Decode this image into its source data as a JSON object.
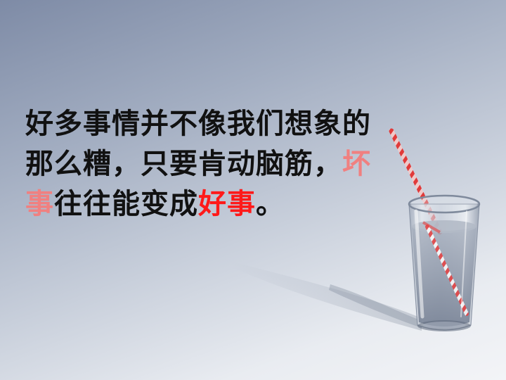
{
  "slide": {
    "lines": [
      {
        "segments": [
          {
            "text": "好多事情并不像我们想象的"
          }
        ]
      },
      {
        "segments": [
          {
            "text": "那么糟，只要肯动脑筋，"
          },
          {
            "text": "坏"
          }
        ]
      },
      {
        "segments": [
          {
            "text": "事"
          },
          {
            "text": "往往能变成"
          },
          {
            "text": "好事"
          },
          {
            "text": "。"
          }
        ]
      }
    ]
  },
  "image": {
    "icon": "glass-of-water-with-straw-icon",
    "glass_color": "#b9c2cf",
    "water_color": "#8d97a8",
    "straw_colors": [
      "#e84040",
      "#ffffff"
    ]
  },
  "colors": {
    "text": "#111111",
    "highlight_soft": "#f08080",
    "highlight_red": "#ff1a1a",
    "background_top": "#7e8ba6",
    "background_bottom": "#f3f4f7"
  }
}
